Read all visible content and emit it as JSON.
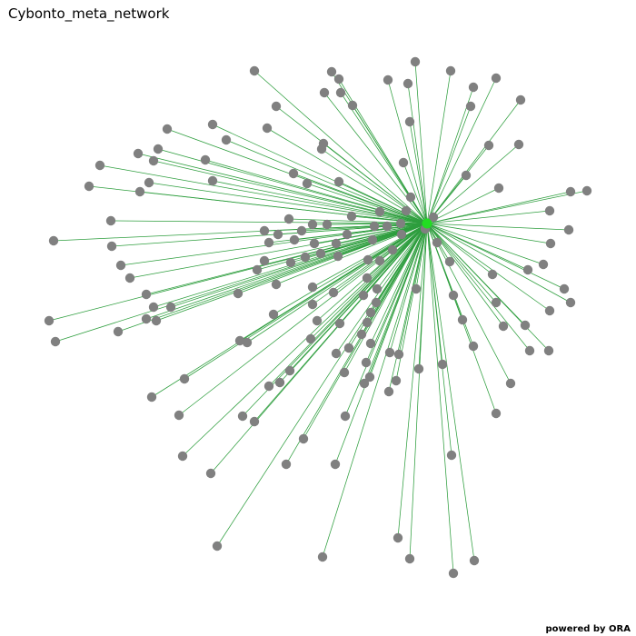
{
  "title": "Cybonto_meta_network",
  "footer": "powered by ORA",
  "colors": {
    "edge": "#2e9e3e",
    "node": "#808080",
    "hub": "#22dd22",
    "background": "#ffffff"
  },
  "graph": {
    "hub_id": "hub",
    "node_count": 175,
    "edge_count": 174
  }
}
